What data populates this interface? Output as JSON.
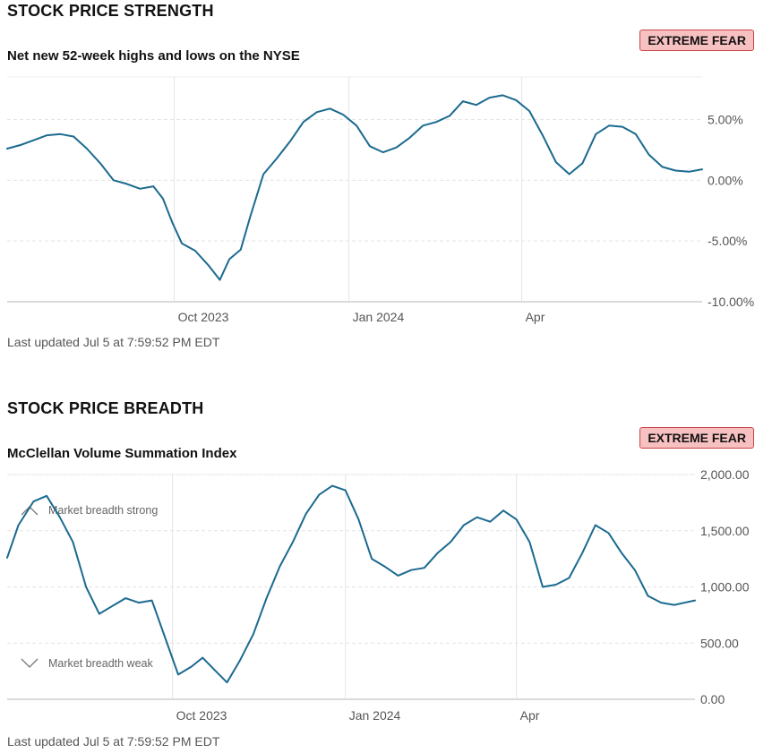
{
  "sections": [
    {
      "title": "STOCK PRICE STRENGTH",
      "subtitle": "Net new 52-week highs and lows on the NYSE",
      "badge": "EXTREME FEAR",
      "updated": "Last updated Jul 5 at 7:59:52 PM EDT"
    },
    {
      "title": "STOCK PRICE BREADTH",
      "subtitle": "McClellan Volume Summation Index",
      "badge": "EXTREME FEAR",
      "updated": "Last updated Jul 5 at 7:59:52 PM EDT"
    }
  ],
  "colors": {
    "line": "#1b6a8f",
    "badge_bg": "#f8c1c1",
    "badge_border": "#c94444",
    "grid": "#e4e4e4"
  },
  "chart_data": [
    {
      "type": "line",
      "title": "",
      "xlabel": "",
      "ylabel": "",
      "x_axis": "date",
      "xlim": [
        "2023-07-05",
        "2024-07-05"
      ],
      "ylim": [
        -10,
        8.5
      ],
      "y_ticks": [
        {
          "value": 5,
          "label": "5.00%"
        },
        {
          "value": 0,
          "label": "0.00%"
        },
        {
          "value": -5,
          "label": "-5.00%"
        },
        {
          "value": -10,
          "label": "-10.00%"
        }
      ],
      "x_ticks": [
        {
          "date": "2023-10-01",
          "label": "Oct 2023"
        },
        {
          "date": "2024-01-01",
          "label": "Jan 2024"
        },
        {
          "date": "2024-04-01",
          "label": "Apr"
        }
      ],
      "grid": true,
      "series": [
        {
          "points": [
            [
              "2023-07-05",
              2.6
            ],
            [
              "2023-07-12",
              2.9
            ],
            [
              "2023-07-19",
              3.3
            ],
            [
              "2023-07-26",
              3.7
            ],
            [
              "2023-08-02",
              3.8
            ],
            [
              "2023-08-09",
              3.6
            ],
            [
              "2023-08-16",
              2.6
            ],
            [
              "2023-08-23",
              1.4
            ],
            [
              "2023-08-30",
              0.0
            ],
            [
              "2023-09-06",
              -0.3
            ],
            [
              "2023-09-13",
              -0.7
            ],
            [
              "2023-09-20",
              -0.5
            ],
            [
              "2023-09-25",
              -1.5
            ],
            [
              "2023-09-30",
              -3.5
            ],
            [
              "2023-10-05",
              -5.2
            ],
            [
              "2023-10-12",
              -5.8
            ],
            [
              "2023-10-19",
              -7.0
            ],
            [
              "2023-10-25",
              -8.2
            ],
            [
              "2023-10-30",
              -6.5
            ],
            [
              "2023-11-05",
              -5.7
            ],
            [
              "2023-11-10",
              -3.0
            ],
            [
              "2023-11-17",
              0.5
            ],
            [
              "2023-11-24",
              1.8
            ],
            [
              "2023-12-01",
              3.2
            ],
            [
              "2023-12-08",
              4.8
            ],
            [
              "2023-12-15",
              5.6
            ],
            [
              "2023-12-22",
              5.9
            ],
            [
              "2023-12-29",
              5.4
            ],
            [
              "2024-01-05",
              4.5
            ],
            [
              "2024-01-12",
              2.8
            ],
            [
              "2024-01-19",
              2.3
            ],
            [
              "2024-01-26",
              2.7
            ],
            [
              "2024-02-02",
              3.5
            ],
            [
              "2024-02-09",
              4.5
            ],
            [
              "2024-02-16",
              4.8
            ],
            [
              "2024-02-23",
              5.3
            ],
            [
              "2024-03-01",
              6.5
            ],
            [
              "2024-03-08",
              6.2
            ],
            [
              "2024-03-15",
              6.8
            ],
            [
              "2024-03-22",
              7.0
            ],
            [
              "2024-03-29",
              6.6
            ],
            [
              "2024-04-05",
              5.7
            ],
            [
              "2024-04-12",
              3.7
            ],
            [
              "2024-04-19",
              1.5
            ],
            [
              "2024-04-26",
              0.5
            ],
            [
              "2024-05-03",
              1.4
            ],
            [
              "2024-05-10",
              3.8
            ],
            [
              "2024-05-17",
              4.5
            ],
            [
              "2024-05-24",
              4.4
            ],
            [
              "2024-05-31",
              3.8
            ],
            [
              "2024-06-07",
              2.1
            ],
            [
              "2024-06-14",
              1.1
            ],
            [
              "2024-06-21",
              0.8
            ],
            [
              "2024-06-28",
              0.7
            ],
            [
              "2024-07-05",
              0.9
            ]
          ]
        }
      ]
    },
    {
      "type": "line",
      "title": "",
      "xlabel": "",
      "ylabel": "",
      "x_axis": "date",
      "xlim": [
        "2023-07-05",
        "2024-07-05"
      ],
      "ylim": [
        0,
        2000
      ],
      "y_ticks": [
        {
          "value": 2000,
          "label": "2,000.00"
        },
        {
          "value": 1500,
          "label": "1,500.00"
        },
        {
          "value": 1000,
          "label": "1,000.00"
        },
        {
          "value": 500,
          "label": "500.00"
        },
        {
          "value": 0,
          "label": "0.00"
        }
      ],
      "x_ticks": [
        {
          "date": "2023-10-01",
          "label": "Oct 2023"
        },
        {
          "date": "2024-01-01",
          "label": "Jan 2024"
        },
        {
          "date": "2024-04-01",
          "label": "Apr"
        }
      ],
      "grid": true,
      "annotations": [
        {
          "label": "Market breadth strong",
          "icon": "chevron-up-icon",
          "position": "top-left"
        },
        {
          "label": "Market breadth weak",
          "icon": "chevron-down-icon",
          "position": "bottom-left"
        }
      ],
      "series": [
        {
          "points": [
            [
              "2023-07-05",
              1260
            ],
            [
              "2023-07-11",
              1550
            ],
            [
              "2023-07-19",
              1760
            ],
            [
              "2023-07-26",
              1810
            ],
            [
              "2023-08-02",
              1620
            ],
            [
              "2023-08-09",
              1400
            ],
            [
              "2023-08-16",
              1000
            ],
            [
              "2023-08-23",
              760
            ],
            [
              "2023-08-30",
              830
            ],
            [
              "2023-09-06",
              900
            ],
            [
              "2023-09-13",
              860
            ],
            [
              "2023-09-20",
              880
            ],
            [
              "2023-09-27",
              550
            ],
            [
              "2023-10-04",
              220
            ],
            [
              "2023-10-11",
              290
            ],
            [
              "2023-10-17",
              370
            ],
            [
              "2023-10-24",
              250
            ],
            [
              "2023-10-30",
              150
            ],
            [
              "2023-11-06",
              350
            ],
            [
              "2023-11-13",
              580
            ],
            [
              "2023-11-20",
              900
            ],
            [
              "2023-11-27",
              1180
            ],
            [
              "2023-12-04",
              1400
            ],
            [
              "2023-12-11",
              1650
            ],
            [
              "2023-12-18",
              1820
            ],
            [
              "2023-12-25",
              1900
            ],
            [
              "2024-01-01",
              1860
            ],
            [
              "2024-01-08",
              1600
            ],
            [
              "2024-01-15",
              1250
            ],
            [
              "2024-01-22",
              1180
            ],
            [
              "2024-01-29",
              1100
            ],
            [
              "2024-02-05",
              1150
            ],
            [
              "2024-02-12",
              1170
            ],
            [
              "2024-02-19",
              1300
            ],
            [
              "2024-02-26",
              1400
            ],
            [
              "2024-03-04",
              1550
            ],
            [
              "2024-03-11",
              1620
            ],
            [
              "2024-03-18",
              1580
            ],
            [
              "2024-03-25",
              1680
            ],
            [
              "2024-04-01",
              1600
            ],
            [
              "2024-04-08",
              1400
            ],
            [
              "2024-04-15",
              1000
            ],
            [
              "2024-04-22",
              1020
            ],
            [
              "2024-04-29",
              1080
            ],
            [
              "2024-05-06",
              1300
            ],
            [
              "2024-05-13",
              1550
            ],
            [
              "2024-05-20",
              1480
            ],
            [
              "2024-05-27",
              1300
            ],
            [
              "2024-06-03",
              1150
            ],
            [
              "2024-06-10",
              920
            ],
            [
              "2024-06-17",
              860
            ],
            [
              "2024-06-24",
              840
            ],
            [
              "2024-07-05",
              880
            ]
          ]
        }
      ]
    }
  ]
}
